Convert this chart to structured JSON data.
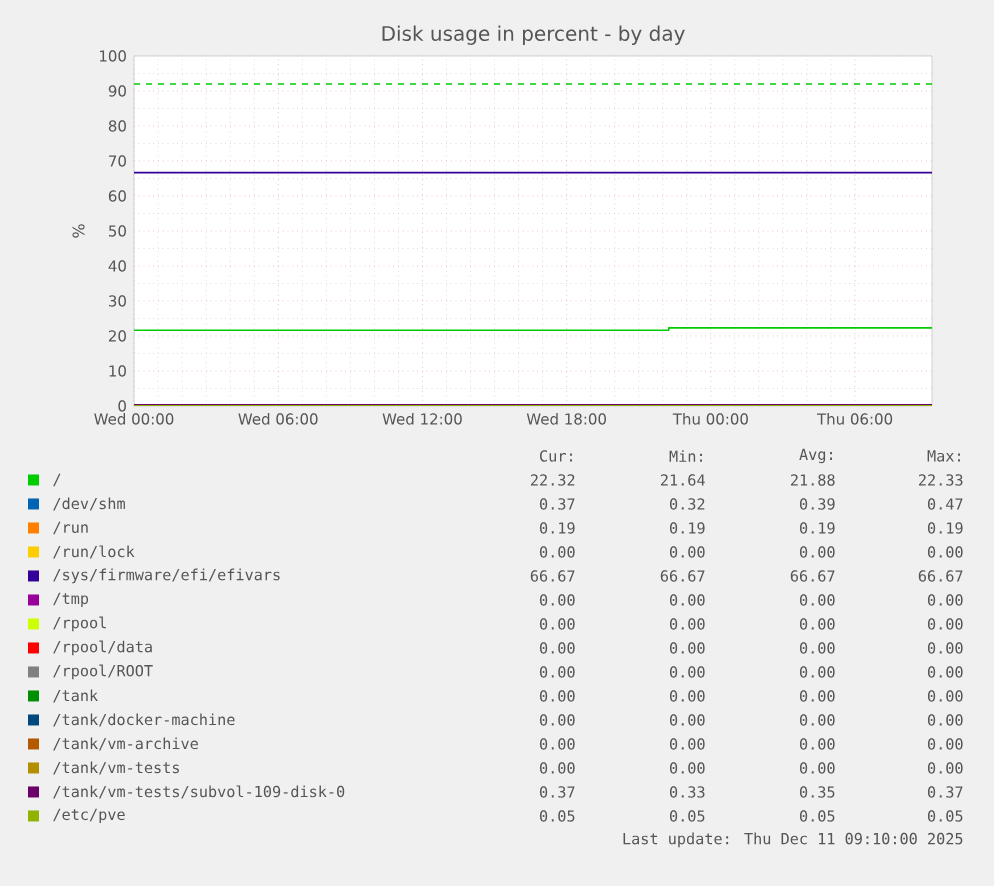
{
  "chart_data": {
    "type": "line",
    "title": "Disk usage in percent - by day",
    "ylabel": "%",
    "x": [
      "2025-12-10T00:00",
      "2025-12-11T09:12"
    ],
    "xlim": [
      "2025-12-10T00:00",
      "2025-12-11T09:12"
    ],
    "ylim": [
      0,
      100
    ],
    "xticks": [
      {
        "value": "2025-12-10T00:00",
        "label": "Wed 00:00"
      },
      {
        "value": "2025-12-10T06:00",
        "label": "Wed 06:00"
      },
      {
        "value": "2025-12-10T12:00",
        "label": "Wed 12:00"
      },
      {
        "value": "2025-12-10T18:00",
        "label": "Wed 18:00"
      },
      {
        "value": "2025-12-11T00:00",
        "label": "Thu 00:00"
      },
      {
        "value": "2025-12-11T06:00",
        "label": "Thu 06:00"
      }
    ],
    "yticks": [
      0,
      10,
      20,
      30,
      40,
      50,
      60,
      70,
      80,
      90,
      100
    ],
    "grid": true,
    "legend": "bottom",
    "line_style": "solid",
    "ref_lines": [
      {
        "axis": "y",
        "value": 92,
        "label": null,
        "color": "#00cc00",
        "line_style": "dashed"
      }
    ],
    "series": [
      {
        "name": "/",
        "color": "#00cc00",
        "x": [
          "2025-12-10T00:00",
          "2025-12-10T22:15",
          "2025-12-10T22:15",
          "2025-12-11T09:12"
        ],
        "values": [
          21.64,
          21.64,
          22.32,
          22.32
        ]
      },
      {
        "name": "/dev/shm",
        "color": "#0066b3",
        "values": [
          null,
          null
        ]
      },
      {
        "name": "/run",
        "color": "#ff8000",
        "values": [
          null,
          null
        ]
      },
      {
        "name": "/run/lock",
        "color": "#ffcc00",
        "values": [
          null,
          null
        ]
      },
      {
        "name": "/sys/firmware/efi/efivars",
        "color": "#330099",
        "values": [
          66.67,
          66.67
        ]
      },
      {
        "name": "/tmp",
        "color": "#990099",
        "values": [
          null,
          null
        ]
      },
      {
        "name": "/rpool",
        "color": "#ccff00",
        "values": [
          null,
          null
        ]
      },
      {
        "name": "/rpool/data",
        "color": "#ff0000",
        "values": [
          null,
          null
        ]
      },
      {
        "name": "/rpool/ROOT",
        "color": "#808080",
        "values": [
          null,
          null
        ]
      },
      {
        "name": "/tank",
        "color": "#008f00",
        "values": [
          null,
          null
        ]
      },
      {
        "name": "/tank/docker-machine",
        "color": "#00487d",
        "values": [
          null,
          null
        ]
      },
      {
        "name": "/tank/vm-archive",
        "color": "#b35a00",
        "values": [
          null,
          null
        ]
      },
      {
        "name": "/tank/vm-tests",
        "color": "#b38f00",
        "values": [
          null,
          null
        ]
      },
      {
        "name": "/tank/vm-tests/subvol-109-disk-0",
        "color": "#6b006b",
        "values": [
          0.37,
          0.37
        ]
      },
      {
        "name": "/etc/pve",
        "color": "#8fb300",
        "values": [
          0.05,
          0.05
        ]
      }
    ],
    "annotations": [
      "Cur:",
      "Min:",
      "Avg:",
      "Max:",
      "22.32",
      "21.64",
      "21.88",
      "22.33",
      "0.37",
      "0.32",
      "0.39",
      "0.47",
      "0.19",
      "0.19",
      "0.19",
      "0.19",
      "0.00",
      "0.00",
      "0.00",
      "0.00",
      "66.67",
      "66.67",
      "66.67",
      "66.67",
      "0.00",
      "0.00",
      "0.00",
      "0.00",
      "0.00",
      "0.00",
      "0.00",
      "0.00",
      "0.00",
      "0.00",
      "0.00",
      "0.00",
      "0.00",
      "0.00",
      "0.00",
      "0.00",
      "0.00",
      "0.00",
      "0.00",
      "0.00",
      "0.00",
      "0.00",
      "0.00",
      "0.00",
      "0.00",
      "0.00",
      "0.00",
      "0.00",
      "0.00",
      "0.00",
      "0.00",
      "0.00",
      "0.37",
      "0.33",
      "0.35",
      "0.37",
      "0.05",
      "0.05",
      "0.05",
      "0.05",
      "Last update: Thu Dec 11 09:10:00 2025"
    ]
  }
}
